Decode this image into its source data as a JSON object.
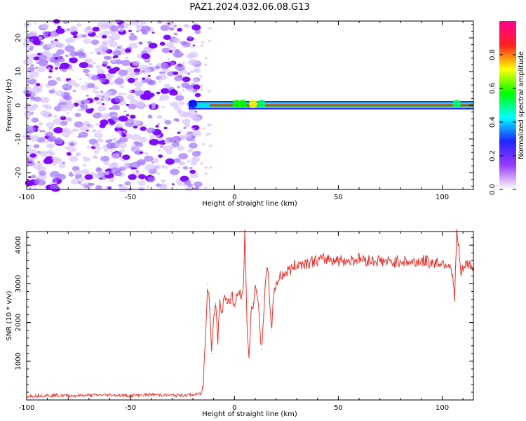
{
  "figure": {
    "title": "PAZ1.2024.032.06.08.G13"
  },
  "chart_data": [
    {
      "type": "heatmap",
      "xlabel": "Height of straight line (km)",
      "ylabel": "Frequency (Hz)",
      "xlim": [
        -100,
        115
      ],
      "ylim": [
        -25,
        25
      ],
      "xticks": [
        -100,
        -50,
        0,
        50,
        100
      ],
      "yticks": [
        -20,
        -10,
        0,
        10,
        20
      ],
      "colorbar": {
        "label": "Normalized spectral amplitude",
        "ticks": [
          0.0,
          0.2,
          0.4,
          0.6,
          0.8
        ],
        "range": [
          0,
          1
        ],
        "colormap": [
          "#ffffff",
          "#9a3cff",
          "#2222ff",
          "#00ffff",
          "#00ff00",
          "#ffff00",
          "#ff2020",
          "#ff0090"
        ]
      },
      "noise_region_x": [
        -100,
        -17
      ],
      "signal_ridge": {
        "frequency_hz": 0,
        "x_start": -22,
        "x_end": 115,
        "peak_amplitude": 0.9
      },
      "colors": {
        "noise": "#7a1cff",
        "ridge_core": "#e8312a",
        "ridge_edge": "#00e0ff"
      }
    },
    {
      "type": "line",
      "xlabel": "Height of straight line (km)",
      "ylabel": "SNR (10 * v/v)",
      "xlim": [
        -100,
        115
      ],
      "ylim": [
        0,
        4350
      ],
      "xticks": [
        -100,
        -50,
        0,
        50,
        100
      ],
      "yticks": [
        1000,
        2000,
        3000,
        4000
      ],
      "series": [
        {
          "color": "#e8312a",
          "x": [
            -100,
            -90,
            -80,
            -70,
            -60,
            -50,
            -40,
            -30,
            -20,
            -16,
            -15,
            -14,
            -13,
            -12,
            -11,
            -10,
            -9,
            -8,
            -7,
            -6,
            -5,
            -4,
            -3,
            -2,
            -1,
            0,
            1,
            2,
            3,
            4,
            5,
            6,
            7,
            8,
            9,
            10,
            11,
            12,
            13,
            14,
            15,
            16,
            17,
            18,
            19,
            20,
            22,
            25,
            30,
            35,
            40,
            45,
            50,
            55,
            60,
            65,
            70,
            75,
            80,
            85,
            90,
            95,
            100,
            104,
            106,
            107,
            108,
            109,
            110,
            112,
            115
          ],
          "values": [
            100,
            120,
            110,
            120,
            130,
            110,
            140,
            120,
            130,
            160,
            400,
            1600,
            3000,
            2600,
            1200,
            2200,
            2500,
            1500,
            2600,
            2300,
            2700,
            2500,
            2600,
            2600,
            2700,
            2400,
            2600,
            2800,
            2700,
            2600,
            4250,
            2000,
            1100,
            2200,
            2500,
            2900,
            2800,
            2000,
            1300,
            2200,
            3000,
            3400,
            2600,
            1800,
            2800,
            3000,
            3200,
            3300,
            3500,
            3550,
            3600,
            3650,
            3600,
            3600,
            3650,
            3600,
            3600,
            3550,
            3600,
            3550,
            3600,
            3550,
            3550,
            3500,
            2700,
            4300,
            3900,
            3200,
            3400,
            3500,
            3450
          ]
        }
      ]
    }
  ]
}
